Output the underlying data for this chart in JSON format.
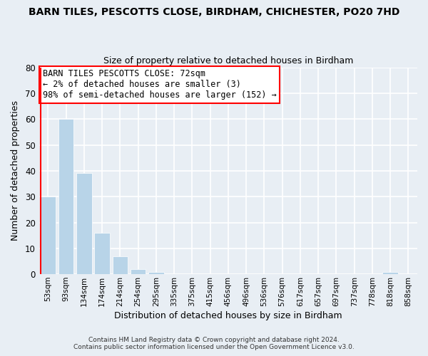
{
  "title": "BARN TILES, PESCOTTS CLOSE, BIRDHAM, CHICHESTER, PO20 7HD",
  "subtitle": "Size of property relative to detached houses in Birdham",
  "xlabel": "Distribution of detached houses by size in Birdham",
  "ylabel": "Number of detached properties",
  "bar_color": "#b8d4e8",
  "bar_edge_color": "#b8d4e8",
  "categories": [
    "53sqm",
    "93sqm",
    "134sqm",
    "174sqm",
    "214sqm",
    "254sqm",
    "295sqm",
    "335sqm",
    "375sqm",
    "415sqm",
    "456sqm",
    "496sqm",
    "536sqm",
    "576sqm",
    "617sqm",
    "657sqm",
    "697sqm",
    "737sqm",
    "778sqm",
    "818sqm",
    "858sqm"
  ],
  "values": [
    30,
    60,
    39,
    16,
    7,
    2,
    1,
    0,
    0,
    0,
    0,
    0,
    0,
    0,
    0,
    0,
    0,
    0,
    0,
    1,
    0
  ],
  "ylim": [
    0,
    80
  ],
  "yticks": [
    0,
    10,
    20,
    30,
    40,
    50,
    60,
    70,
    80
  ],
  "annotation_title": "BARN TILES PESCOTTS CLOSE: 72sqm",
  "annotation_line1": "← 2% of detached houses are smaller (3)",
  "annotation_line2": "98% of semi-detached houses are larger (152) →",
  "background_color": "#e8eef4",
  "plot_bg_color": "#e8eef4",
  "grid_color": "#ffffff",
  "footer_line1": "Contains HM Land Registry data © Crown copyright and database right 2024.",
  "footer_line2": "Contains public sector information licensed under the Open Government Licence v3.0."
}
